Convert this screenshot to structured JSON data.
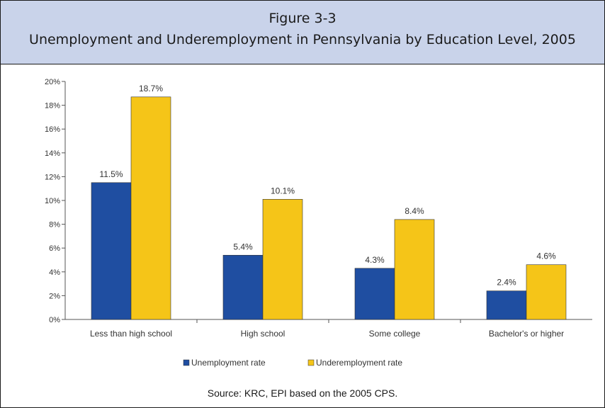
{
  "figure": {
    "number": "Figure 3-3",
    "title": "Unemployment and Underemployment in Pennsylvania by Education Level, 2005",
    "source": "Source: KRC, EPI based on the 2005 CPS."
  },
  "chart_data": {
    "type": "bar",
    "categories": [
      "Less than high school",
      "High school",
      "Some college",
      "Bachelor's or higher"
    ],
    "series": [
      {
        "name": "Unemployment rate",
        "values": [
          11.5,
          5.4,
          4.3,
          2.4
        ],
        "labels": [
          "11.5%",
          "5.4%",
          "4.3%",
          "2.4%"
        ],
        "color": "#1f4ea1"
      },
      {
        "name": "Underemployment rate",
        "values": [
          18.7,
          10.1,
          8.4,
          4.6
        ],
        "labels": [
          "18.7%",
          "10.1%",
          "8.4%",
          "4.6%"
        ],
        "color": "#f5c518"
      }
    ],
    "yticks": [
      "0%",
      "2%",
      "4%",
      "6%",
      "8%",
      "10%",
      "12%",
      "14%",
      "16%",
      "18%",
      "20%"
    ],
    "ylim": [
      0,
      20
    ],
    "legend": "bottom",
    "grid": false
  }
}
